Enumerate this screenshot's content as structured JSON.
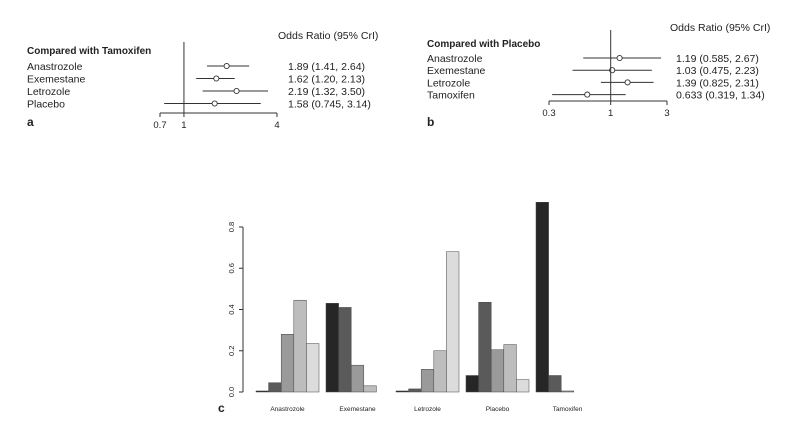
{
  "panels": {
    "a": "a",
    "b": "b",
    "c": "c"
  },
  "colors": {
    "line": "#333333",
    "marker_fill": "#ffffff",
    "bars": [
      "#262626",
      "#5a5a5a",
      "#9a9a9a",
      "#bdbdbd",
      "#dcdcdc"
    ]
  },
  "chart_data": [
    {
      "type": "forest",
      "panel": "a",
      "header": "Compared with Tamoxifen",
      "value_header": "Odds Ratio (95% CrI)",
      "x_scale": "log",
      "x_ticks": [
        0.7,
        1,
        4
      ],
      "x_tick_labels": [
        "0.7",
        "1",
        "4"
      ],
      "reference": 1,
      "rows": [
        {
          "label": "Anastrozole",
          "or": 1.89,
          "lo": 1.41,
          "hi": 2.64,
          "text": "1.89 (1.41, 2.64)"
        },
        {
          "label": "Exemestane",
          "or": 1.62,
          "lo": 1.2,
          "hi": 2.13,
          "text": "1.62 (1.20, 2.13)"
        },
        {
          "label": "Letrozole",
          "or": 2.19,
          "lo": 1.32,
          "hi": 3.5,
          "text": "2.19 (1.32, 3.50)"
        },
        {
          "label": "Placebo",
          "or": 1.58,
          "lo": 0.745,
          "hi": 3.14,
          "text": "1.58 (0.745, 3.14)"
        }
      ]
    },
    {
      "type": "forest",
      "panel": "b",
      "header": "Compared with Placebo",
      "value_header": "Odds Ratio (95% CrI)",
      "x_scale": "log",
      "x_ticks": [
        0.3,
        1,
        3
      ],
      "x_tick_labels": [
        "0.3",
        "1",
        "3"
      ],
      "reference": 1,
      "rows": [
        {
          "label": "Anastrozole",
          "or": 1.19,
          "lo": 0.585,
          "hi": 2.67,
          "text": "1.19 (0.585, 2.67)"
        },
        {
          "label": "Exemestane",
          "or": 1.03,
          "lo": 0.475,
          "hi": 2.23,
          "text": "1.03 (0.475, 2.23)"
        },
        {
          "label": "Letrozole",
          "or": 1.39,
          "lo": 0.825,
          "hi": 2.31,
          "text": "1.39 (0.825, 2.31)"
        },
        {
          "label": "Tamoxifen",
          "or": 0.633,
          "lo": 0.319,
          "hi": 1.34,
          "text": "0.633 (0.319, 1.34)"
        }
      ]
    },
    {
      "type": "bar",
      "panel": "c",
      "grouped": true,
      "categories": [
        "Anastrozole",
        "Exemestane",
        "Letrozole",
        "Placebo",
        "Tamoxifen"
      ],
      "ylim": [
        0,
        0.9
      ],
      "y_ticks": [
        0.0,
        0.2,
        0.4,
        0.6,
        0.8
      ],
      "y_tick_labels": [
        "0.0",
        "0.2",
        "0.4",
        "0.6",
        "0.8"
      ],
      "groups": [
        [
          0.005,
          0.045,
          0.28,
          0.445,
          0.235
        ],
        [
          0.43,
          0.41,
          0.13,
          0.03,
          0.0
        ],
        [
          0.005,
          0.015,
          0.11,
          0.2,
          0.68
        ],
        [
          0.08,
          0.435,
          0.205,
          0.23,
          0.06
        ],
        [
          0.92,
          0.08,
          0.005,
          0.0,
          0.0
        ]
      ]
    }
  ]
}
